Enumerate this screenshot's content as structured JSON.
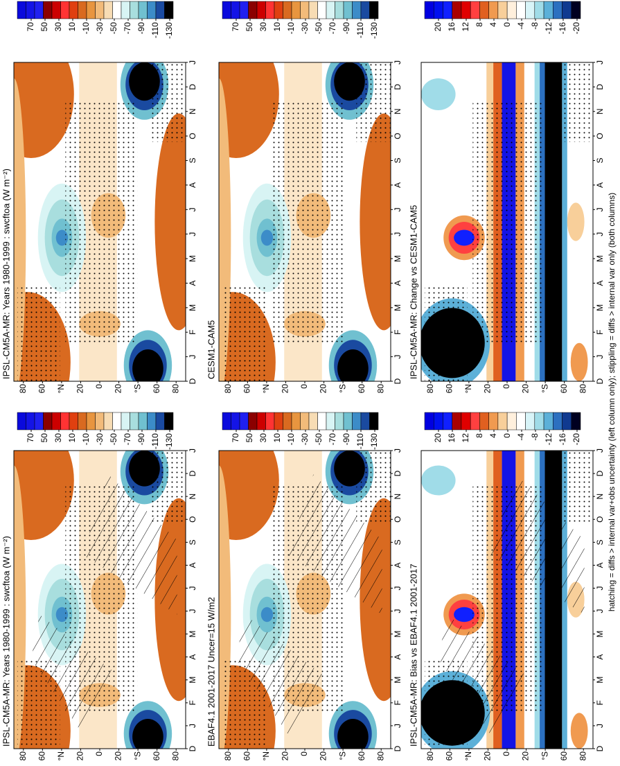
{
  "chart_data": [
    {
      "type": "contour",
      "title": "IPSL-CM5A-MR: Years 1980-1999 : swcftoa (W m⁻²)",
      "x": [
        "D",
        "J",
        "F",
        "M",
        "A",
        "M",
        "J",
        "J",
        "A",
        "S",
        "O",
        "N",
        "D",
        "J"
      ],
      "ylim": [
        90,
        -90
      ],
      "yticks": [
        {
          "value": 80,
          "label": "80"
        },
        {
          "value": 60,
          "label": "60"
        },
        {
          "value": 40,
          "label": "°N"
        },
        {
          "value": 20,
          "label": "20"
        },
        {
          "value": 0,
          "label": "0"
        },
        {
          "value": -20,
          "label": "20"
        },
        {
          "value": -40,
          "label": "°S"
        },
        {
          "value": -60,
          "label": "60"
        },
        {
          "value": -80,
          "label": "80"
        }
      ],
      "colorbar": {
        "lim": [
          90,
          -135
        ],
        "ticks": [
          70,
          50,
          30,
          10,
          -10,
          -30,
          -50,
          -70,
          -90,
          -110,
          -130
        ],
        "colors": [
          "#0a0adc",
          "#1414e6",
          "#2020f0",
          "#8b0000",
          "#cc0000",
          "#ff3333",
          "#e04010",
          "#d96a20",
          "#e8953f",
          "#f2bb7a",
          "#f7dcb4",
          "#ffffff",
          "#d8f4f4",
          "#a8dede",
          "#70c0d0",
          "#3c8cc8",
          "#1a4aa0",
          "#000000"
        ]
      }
    },
    {
      "type": "contour",
      "title": "IPSL-CM5A-MR: Years 1980-1999 : swcftoa (W m⁻²)",
      "x": [
        "D",
        "J",
        "F",
        "M",
        "A",
        "M",
        "J",
        "J",
        "A",
        "S",
        "O",
        "N",
        "D",
        "J"
      ],
      "ylim": [
        90,
        -90
      ],
      "yticks": [
        {
          "value": 80,
          "label": "80"
        },
        {
          "value": 60,
          "label": "60"
        },
        {
          "value": 40,
          "label": "°N"
        },
        {
          "value": 20,
          "label": "20"
        },
        {
          "value": 0,
          "label": "0"
        },
        {
          "value": -20,
          "label": "20"
        },
        {
          "value": -40,
          "label": "°S"
        },
        {
          "value": -60,
          "label": "60"
        },
        {
          "value": -80,
          "label": "80"
        }
      ],
      "colorbar": {
        "lim": [
          90,
          -135
        ],
        "ticks": [
          70,
          50,
          30,
          10,
          -10,
          -30,
          -50,
          -70,
          -90,
          -110,
          -130
        ],
        "colors": [
          "#0a0adc",
          "#1414e6",
          "#2020f0",
          "#8b0000",
          "#cc0000",
          "#ff3333",
          "#e04010",
          "#d96a20",
          "#e8953f",
          "#f2bb7a",
          "#f7dcb4",
          "#ffffff",
          "#d8f4f4",
          "#a8dede",
          "#70c0d0",
          "#3c8cc8",
          "#1a4aa0",
          "#000000"
        ]
      }
    },
    {
      "type": "contour",
      "title": "EBAF4.1 2001-2017 Uncer=15 W/m2",
      "x": [
        "D",
        "J",
        "F",
        "M",
        "A",
        "M",
        "J",
        "J",
        "A",
        "S",
        "O",
        "N",
        "D",
        "J"
      ],
      "ylim": [
        90,
        -90
      ],
      "yticks": [
        {
          "value": 80,
          "label": "80"
        },
        {
          "value": 60,
          "label": "60"
        },
        {
          "value": 40,
          "label": "°N"
        },
        {
          "value": 20,
          "label": "20"
        },
        {
          "value": 0,
          "label": "0"
        },
        {
          "value": -20,
          "label": "20"
        },
        {
          "value": -40,
          "label": "°S"
        },
        {
          "value": -60,
          "label": "60"
        },
        {
          "value": -80,
          "label": "80"
        }
      ],
      "colorbar": {
        "lim": [
          90,
          -135
        ],
        "ticks": [
          70,
          50,
          30,
          10,
          -10,
          -30,
          -50,
          -70,
          -90,
          -110,
          -130
        ],
        "colors": [
          "#0a0adc",
          "#1414e6",
          "#2020f0",
          "#8b0000",
          "#cc0000",
          "#ff3333",
          "#e04010",
          "#d96a20",
          "#e8953f",
          "#f2bb7a",
          "#f7dcb4",
          "#ffffff",
          "#d8f4f4",
          "#a8dede",
          "#70c0d0",
          "#3c8cc8",
          "#1a4aa0",
          "#000000"
        ]
      }
    },
    {
      "type": "contour",
      "title": "CESM1-CAM5",
      "x": [
        "D",
        "J",
        "F",
        "M",
        "A",
        "M",
        "J",
        "J",
        "A",
        "S",
        "O",
        "N",
        "D",
        "J"
      ],
      "ylim": [
        90,
        -90
      ],
      "yticks": [
        {
          "value": 80,
          "label": "80"
        },
        {
          "value": 60,
          "label": "60"
        },
        {
          "value": 40,
          "label": "°N"
        },
        {
          "value": 20,
          "label": "20"
        },
        {
          "value": 0,
          "label": "0"
        },
        {
          "value": -20,
          "label": "20"
        },
        {
          "value": -40,
          "label": "°S"
        },
        {
          "value": -60,
          "label": "60"
        },
        {
          "value": -80,
          "label": "80"
        }
      ],
      "colorbar": {
        "lim": [
          90,
          -135
        ],
        "ticks": [
          70,
          50,
          30,
          10,
          -10,
          -30,
          -50,
          -70,
          -90,
          -110,
          -130
        ],
        "colors": [
          "#0a0adc",
          "#1414e6",
          "#2020f0",
          "#8b0000",
          "#cc0000",
          "#ff3333",
          "#e04010",
          "#d96a20",
          "#e8953f",
          "#f2bb7a",
          "#f7dcb4",
          "#ffffff",
          "#d8f4f4",
          "#a8dede",
          "#70c0d0",
          "#3c8cc8",
          "#1a4aa0",
          "#000000"
        ]
      }
    },
    {
      "type": "contour",
      "title": "IPSL-CM5A-MR: Bias vs EBAF4.1 2001-2017",
      "x": [
        "D",
        "J",
        "F",
        "M",
        "A",
        "M",
        "J",
        "J",
        "A",
        "S",
        "O",
        "N",
        "D",
        "J"
      ],
      "ylim": [
        90,
        -90
      ],
      "yticks": [
        {
          "value": 80,
          "label": "80"
        },
        {
          "value": 60,
          "label": "60"
        },
        {
          "value": 40,
          "label": "°N"
        },
        {
          "value": 20,
          "label": "20"
        },
        {
          "value": 0,
          "label": "0"
        },
        {
          "value": -20,
          "label": "20"
        },
        {
          "value": -40,
          "label": "°S"
        },
        {
          "value": -60,
          "label": "60"
        },
        {
          "value": -80,
          "label": "80"
        }
      ],
      "colorbar": {
        "lim": [
          24,
          -21
        ],
        "ticks": [
          20,
          16,
          12,
          8,
          4,
          0,
          -4,
          -8,
          -12,
          -16,
          -20
        ],
        "colors": [
          "#0000e0",
          "#0010f0",
          "#1020ff",
          "#aa0000",
          "#e00000",
          "#ff4040",
          "#e06020",
          "#f09a50",
          "#f8cf9a",
          "#fff0dd",
          "#ffffff",
          "#d8f4f8",
          "#a0dce8",
          "#5cb0d8",
          "#2c70c0",
          "#103a90",
          "#000020"
        ]
      }
    },
    {
      "type": "contour",
      "title": "IPSL-CM5A-MR: Change vs CESM1-CAM5",
      "x": [
        "D",
        "J",
        "F",
        "M",
        "A",
        "M",
        "J",
        "J",
        "A",
        "S",
        "O",
        "N",
        "D",
        "J"
      ],
      "ylim": [
        90,
        -90
      ],
      "yticks": [
        {
          "value": 80,
          "label": "80"
        },
        {
          "value": 60,
          "label": "60"
        },
        {
          "value": 40,
          "label": "°N"
        },
        {
          "value": 20,
          "label": "20"
        },
        {
          "value": 0,
          "label": "0"
        },
        {
          "value": -20,
          "label": "20"
        },
        {
          "value": -40,
          "label": "°S"
        },
        {
          "value": -60,
          "label": "60"
        },
        {
          "value": -80,
          "label": "80"
        }
      ],
      "colorbar": {
        "lim": [
          24,
          -21
        ],
        "ticks": [
          20,
          16,
          12,
          8,
          4,
          0,
          -4,
          -8,
          -12,
          -16,
          -20
        ],
        "colors": [
          "#0000e0",
          "#0010f0",
          "#1020ff",
          "#aa0000",
          "#e00000",
          "#ff4040",
          "#e06020",
          "#f09a50",
          "#f8cf9a",
          "#fff0dd",
          "#ffffff",
          "#d8f4f8",
          "#a0dce8",
          "#5cb0d8",
          "#2c70c0",
          "#103a90",
          "#000020"
        ]
      }
    }
  ],
  "footnote": "hatching = diffs > internal var+obs uncertainty (left column only); stippling = diffs > internal var only (both columns)"
}
